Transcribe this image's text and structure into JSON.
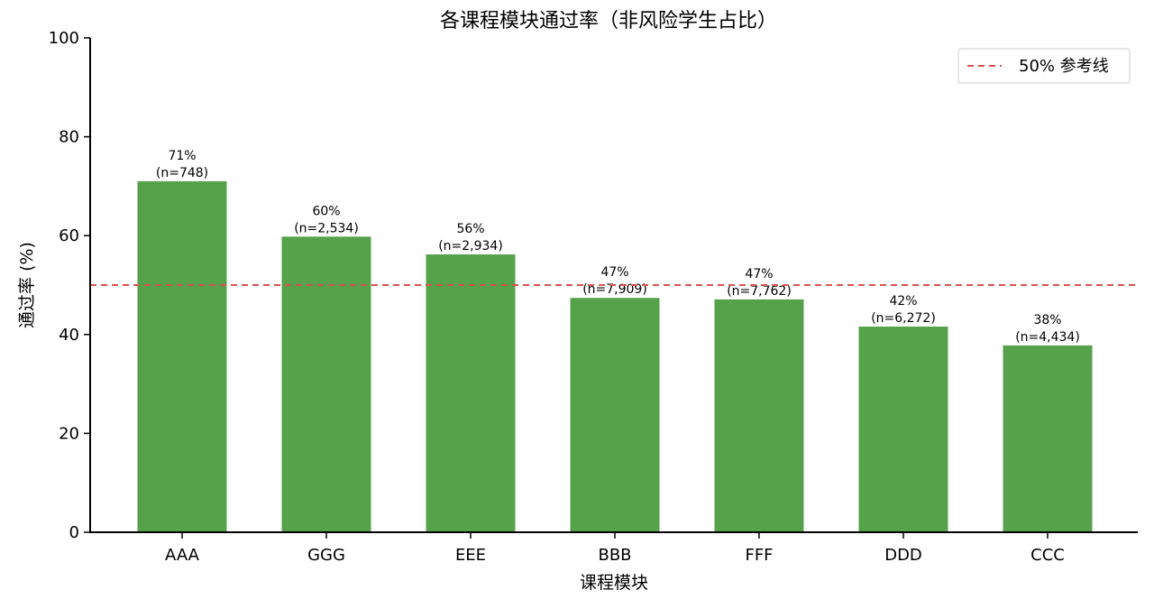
{
  "chart_data": {
    "type": "bar",
    "title": "各课程模块通过率（非风险学生占比）",
    "xlabel": "课程模块",
    "ylabel": "通过率 (%)",
    "categories": [
      "AAA",
      "GGG",
      "EEE",
      "BBB",
      "FFF",
      "DDD",
      "CCC"
    ],
    "values": [
      71.0,
      59.8,
      56.2,
      47.4,
      47.1,
      41.6,
      37.8
    ],
    "value_labels": [
      "71%",
      "60%",
      "56%",
      "47%",
      "47%",
      "42%",
      "38%"
    ],
    "count_labels": [
      "(n=748)",
      "(n=2,534)",
      "(n=2,934)",
      "(n=7,909)",
      "(n=7,762)",
      "(n=6,272)",
      "(n=4,434)"
    ],
    "ylim": [
      0,
      100
    ],
    "yticks": [
      0,
      20,
      40,
      60,
      80,
      100
    ],
    "reference_line": {
      "value": 50,
      "label": "50% 参考线",
      "color": "#d9534f",
      "style": "dashed"
    },
    "bar_color": "#55a24a",
    "legend_position": "top-right",
    "grid": false
  }
}
